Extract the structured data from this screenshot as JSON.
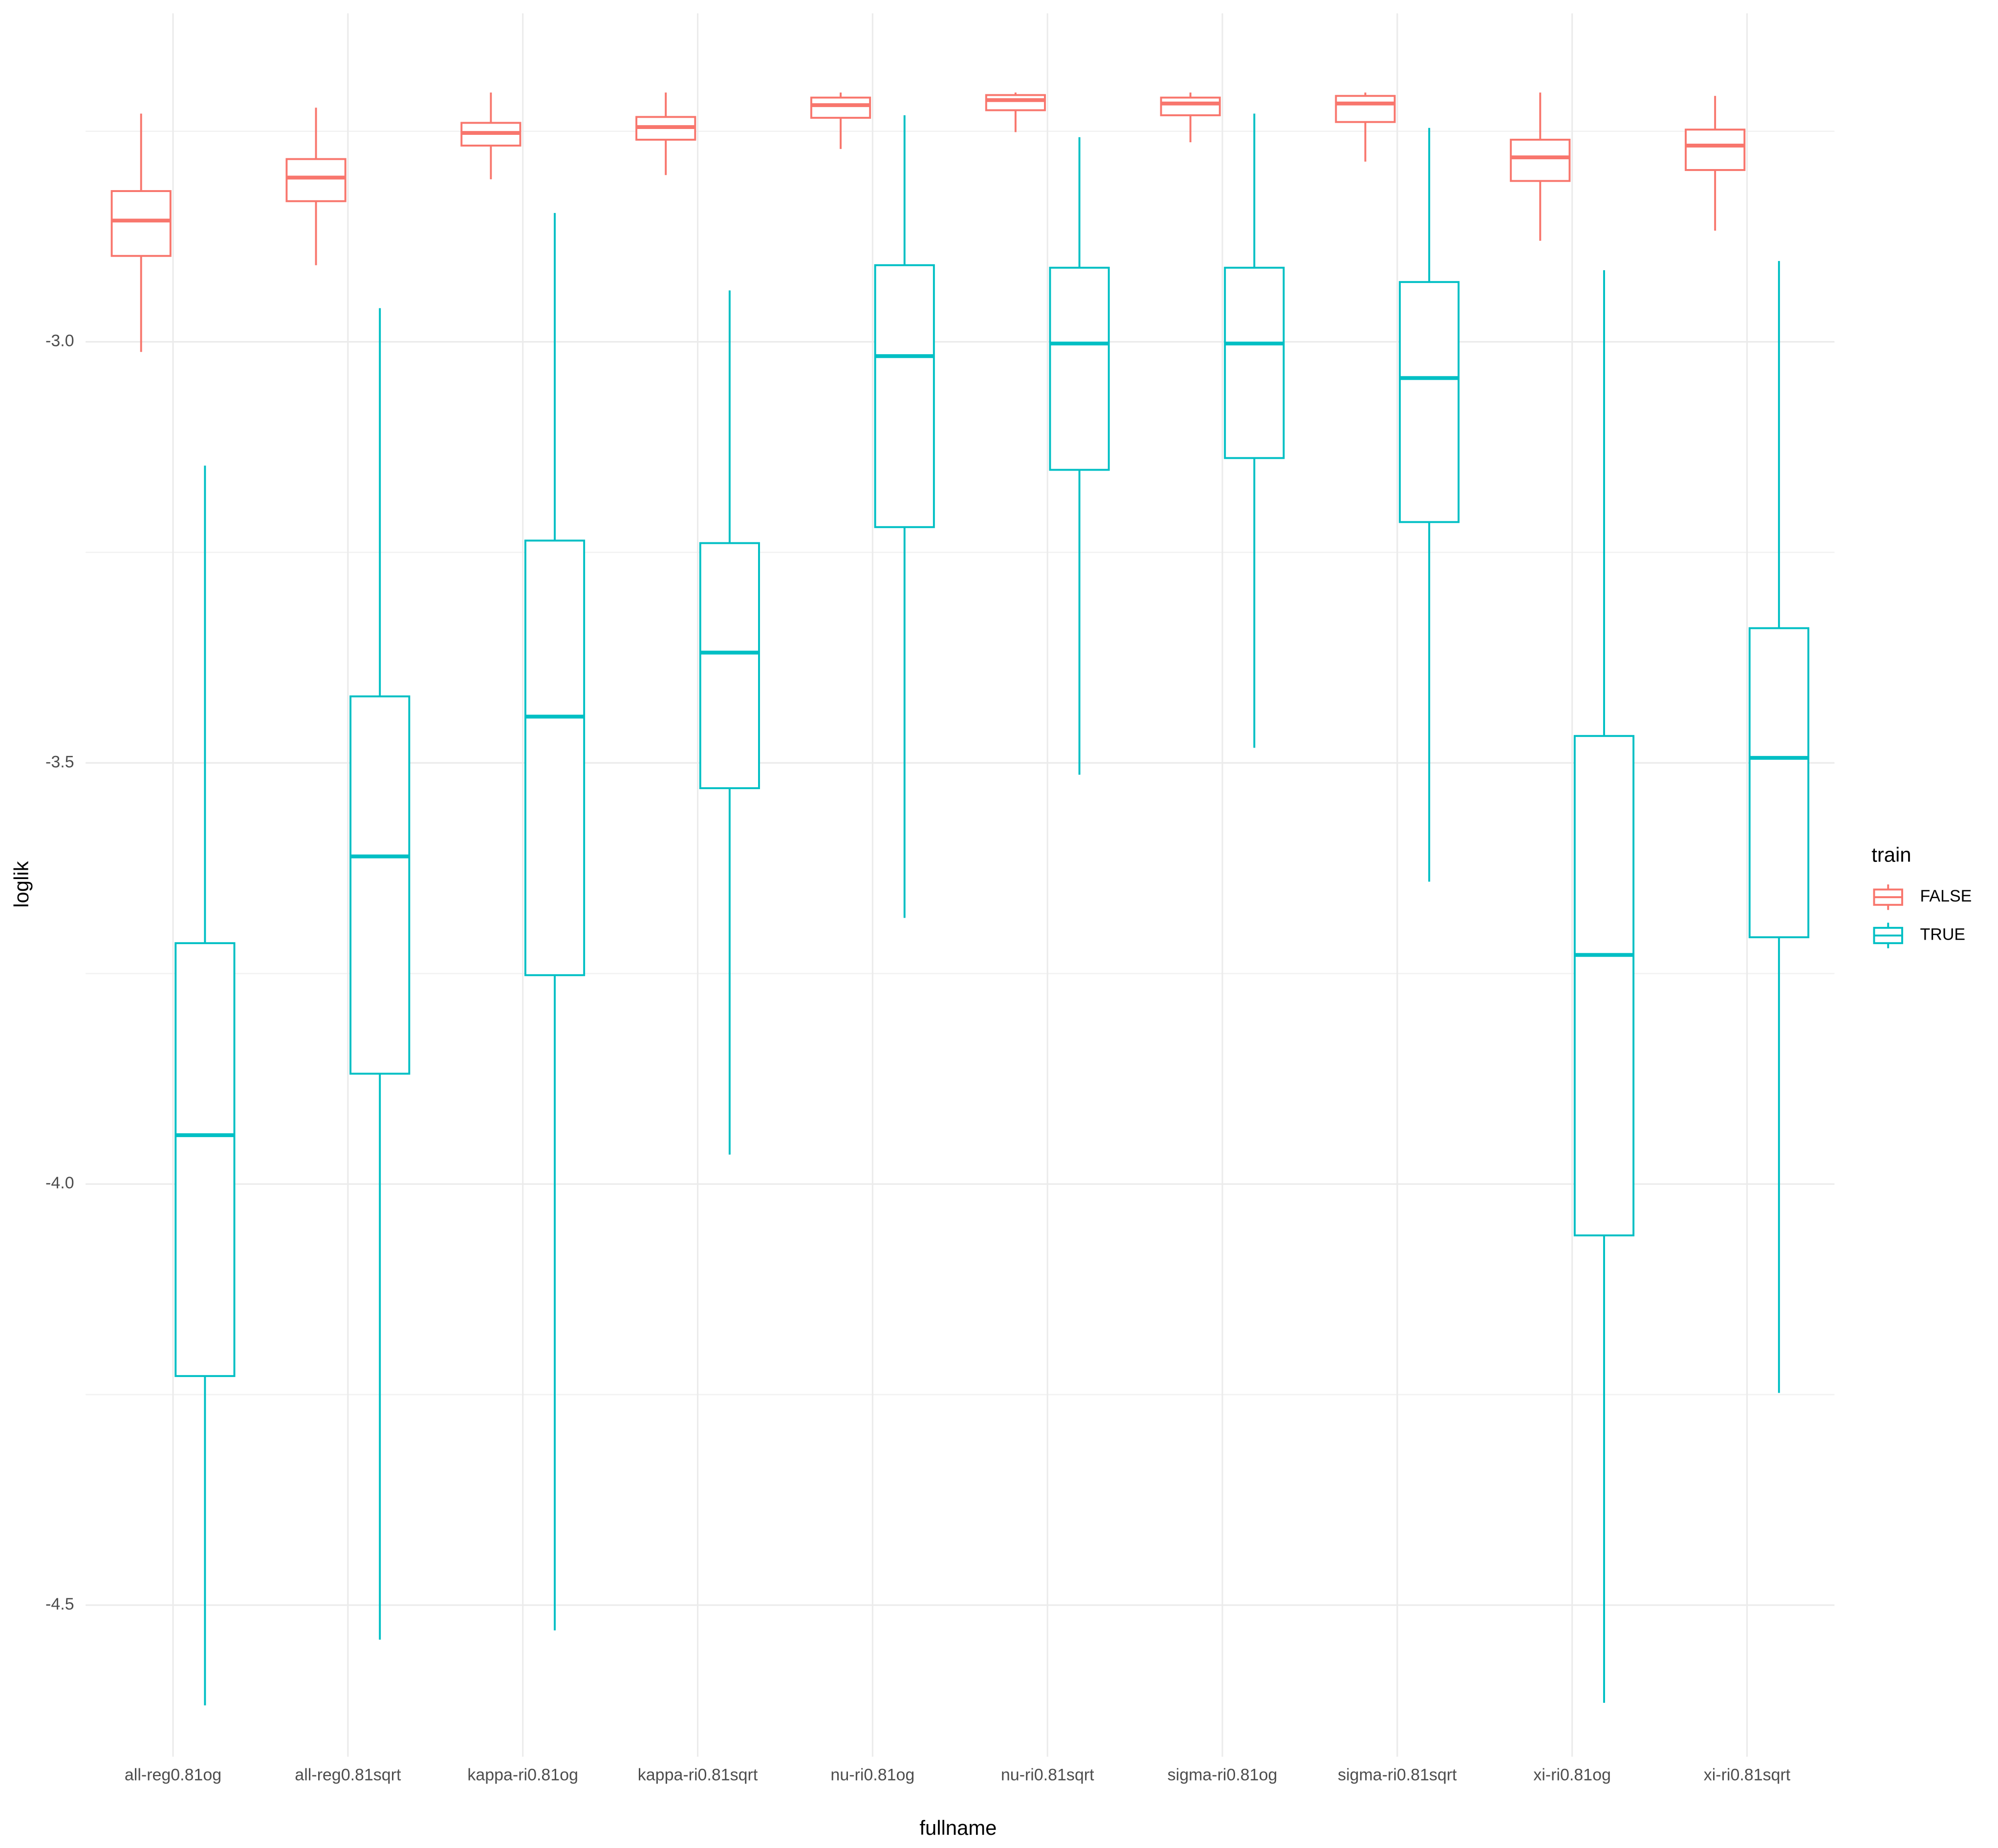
{
  "chart_data": {
    "type": "boxplot",
    "x_label": "fullname",
    "y_label": "loglik",
    "legend_title": "train",
    "categories": [
      "all-reg0.81og",
      "all-reg0.81sqrt",
      "kappa-ri0.81og",
      "kappa-ri0.81sqrt",
      "nu-ri0.81og",
      "nu-ri0.81sqrt",
      "sigma-ri0.81og",
      "sigma-ri0.81sqrt",
      "xi-ri0.81og",
      "xi-ri0.81sqrt"
    ],
    "series": [
      {
        "name": "FALSE",
        "color": "#f8766d",
        "whisker_low": [
          -3.012,
          -2.909,
          -2.807,
          -2.802,
          -2.771,
          -2.751,
          -2.763,
          -2.786,
          -2.88,
          -2.868
        ],
        "q1": [
          -2.898,
          -2.833,
          -2.767,
          -2.76,
          -2.734,
          -2.725,
          -2.731,
          -2.739,
          -2.809,
          -2.796
        ],
        "median": [
          -2.856,
          -2.805,
          -2.752,
          -2.745,
          -2.719,
          -2.713,
          -2.717,
          -2.717,
          -2.781,
          -2.767
        ],
        "q3": [
          -2.821,
          -2.783,
          -2.74,
          -2.733,
          -2.71,
          -2.707,
          -2.71,
          -2.708,
          -2.76,
          -2.748
        ],
        "whisker_high": [
          -2.729,
          -2.722,
          -2.704,
          -2.704,
          -2.704,
          -2.704,
          -2.704,
          -2.704,
          -2.704,
          -2.708
        ]
      },
      {
        "name": "TRUE",
        "color": "#00bfc4",
        "whisker_low": [
          -4.619,
          -4.541,
          -4.53,
          -3.965,
          -3.684,
          -3.514,
          -3.482,
          -3.641,
          -4.616,
          -4.248
        ],
        "q1": [
          -4.228,
          -3.869,
          -3.752,
          -3.53,
          -3.22,
          -3.152,
          -3.138,
          -3.214,
          -4.061,
          -3.707
        ],
        "median": [
          -3.942,
          -3.611,
          -3.445,
          -3.369,
          -3.017,
          -3.002,
          -3.002,
          -3.043,
          -3.728,
          -3.494
        ],
        "q3": [
          -3.714,
          -3.421,
          -3.236,
          -3.239,
          -2.909,
          -2.912,
          -2.912,
          -2.929,
          -3.468,
          -3.34
        ],
        "whisker_high": [
          -3.147,
          -2.96,
          -2.847,
          -2.939,
          -2.731,
          -2.757,
          -2.729,
          -2.746,
          -2.915,
          -2.904
        ]
      }
    ],
    "ylim": [
      -4.68,
      -2.61
    ],
    "yticks": [
      {
        "value": -3,
        "label": "-3.0"
      },
      -3.5,
      {
        "value": -4,
        "label": "-4.0"
      },
      -4.5
    ],
    "yminor": [
      -2.75,
      -3.25,
      -3.75,
      -4.25
    ],
    "grid": true,
    "legend_position": "right"
  }
}
